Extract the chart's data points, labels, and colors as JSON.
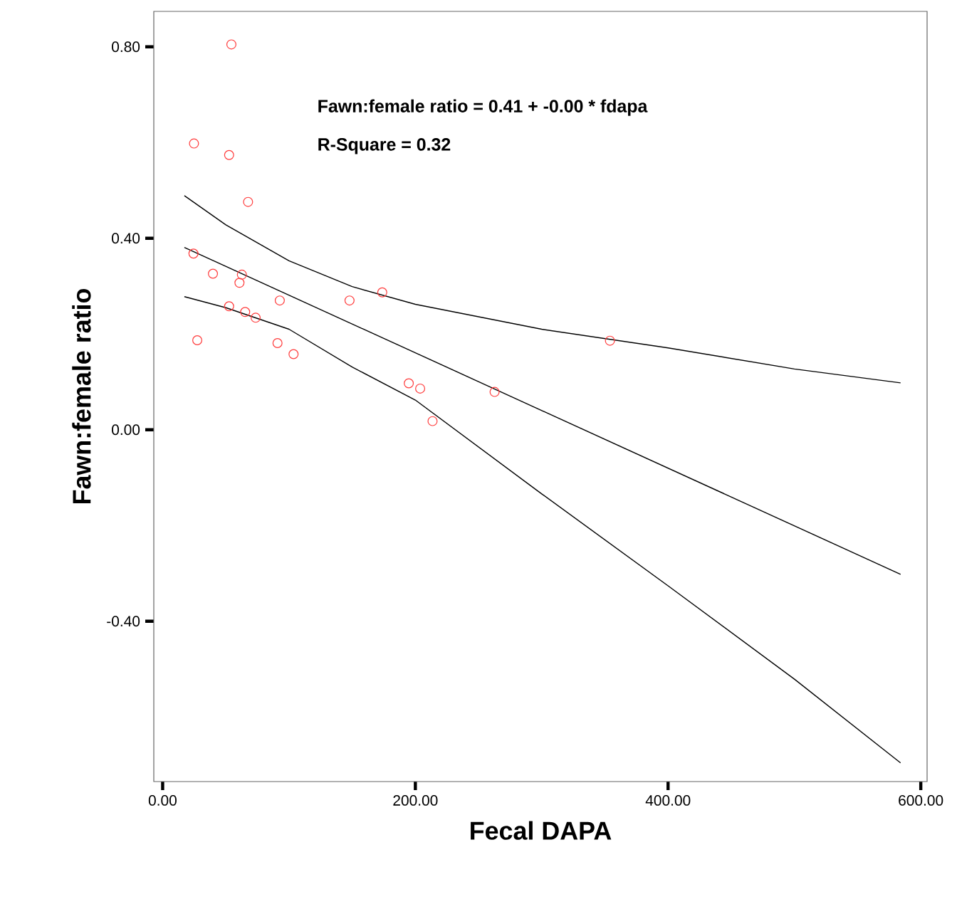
{
  "chart_data": {
    "type": "scatter",
    "xlabel": "Fecal DAPA",
    "ylabel": "Fawn:female ratio",
    "annotations": [
      "Fawn:female ratio  = 0.41 + -0.00 * fdapa",
      "R-Square = 0.32"
    ],
    "xlim": [
      -7,
      605
    ],
    "ylim": [
      -0.735,
      0.874
    ],
    "xticks": [
      {
        "value": 0,
        "label": "0.00"
      },
      {
        "value": 200,
        "label": "200.00"
      },
      {
        "value": 400,
        "label": "400.00"
      },
      {
        "value": 600,
        "label": "600.00"
      }
    ],
    "yticks": [
      {
        "value": -0.4,
        "label": "-0.40"
      },
      {
        "value": 0,
        "label": "0.00"
      },
      {
        "value": 0.4,
        "label": "0.40"
      },
      {
        "value": 0.8,
        "label": "0.80"
      }
    ],
    "grid": false,
    "series": [
      {
        "color": "#ff3c3c",
        "marker": "circle",
        "x": [
          54.4,
          24.8,
          52.6,
          67.6,
          24.4,
          39.8,
          62.7,
          60.8,
          92.7,
          52.6,
          65.3,
          73.6,
          147.9,
          173.8,
          27.4,
          90.9,
          103.6,
          194.8,
          203.8,
          213.6,
          262.7,
          354
        ],
        "values": [
          0.805,
          0.598,
          0.574,
          0.476,
          0.368,
          0.326,
          0.324,
          0.307,
          0.27,
          0.258,
          0.246,
          0.234,
          0.27,
          0.287,
          0.187,
          0.181,
          0.158,
          0.097,
          0.086,
          0.018,
          0.079,
          0.186
        ]
      },
      {
        "type": "line",
        "color": "#000000",
        "marker": "none",
        "x": [
          17.2,
          584
        ],
        "values": [
          0.381,
          -0.302
        ]
      },
      {
        "type": "line",
        "color": "#000000",
        "marker": "none",
        "x": [
          17.2,
          50,
          100,
          150,
          200,
          300,
          400,
          500,
          584
        ],
        "values": [
          0.489,
          0.428,
          0.353,
          0.299,
          0.262,
          0.21,
          0.171,
          0.127,
          0.098
        ]
      },
      {
        "type": "line",
        "color": "#000000",
        "marker": "none",
        "x": [
          17.2,
          50,
          100,
          150,
          200,
          300,
          400,
          500,
          584
        ],
        "values": [
          0.278,
          0.255,
          0.21,
          0.131,
          0.062,
          -0.134,
          -0.326,
          -0.521,
          -0.696
        ]
      }
    ]
  }
}
